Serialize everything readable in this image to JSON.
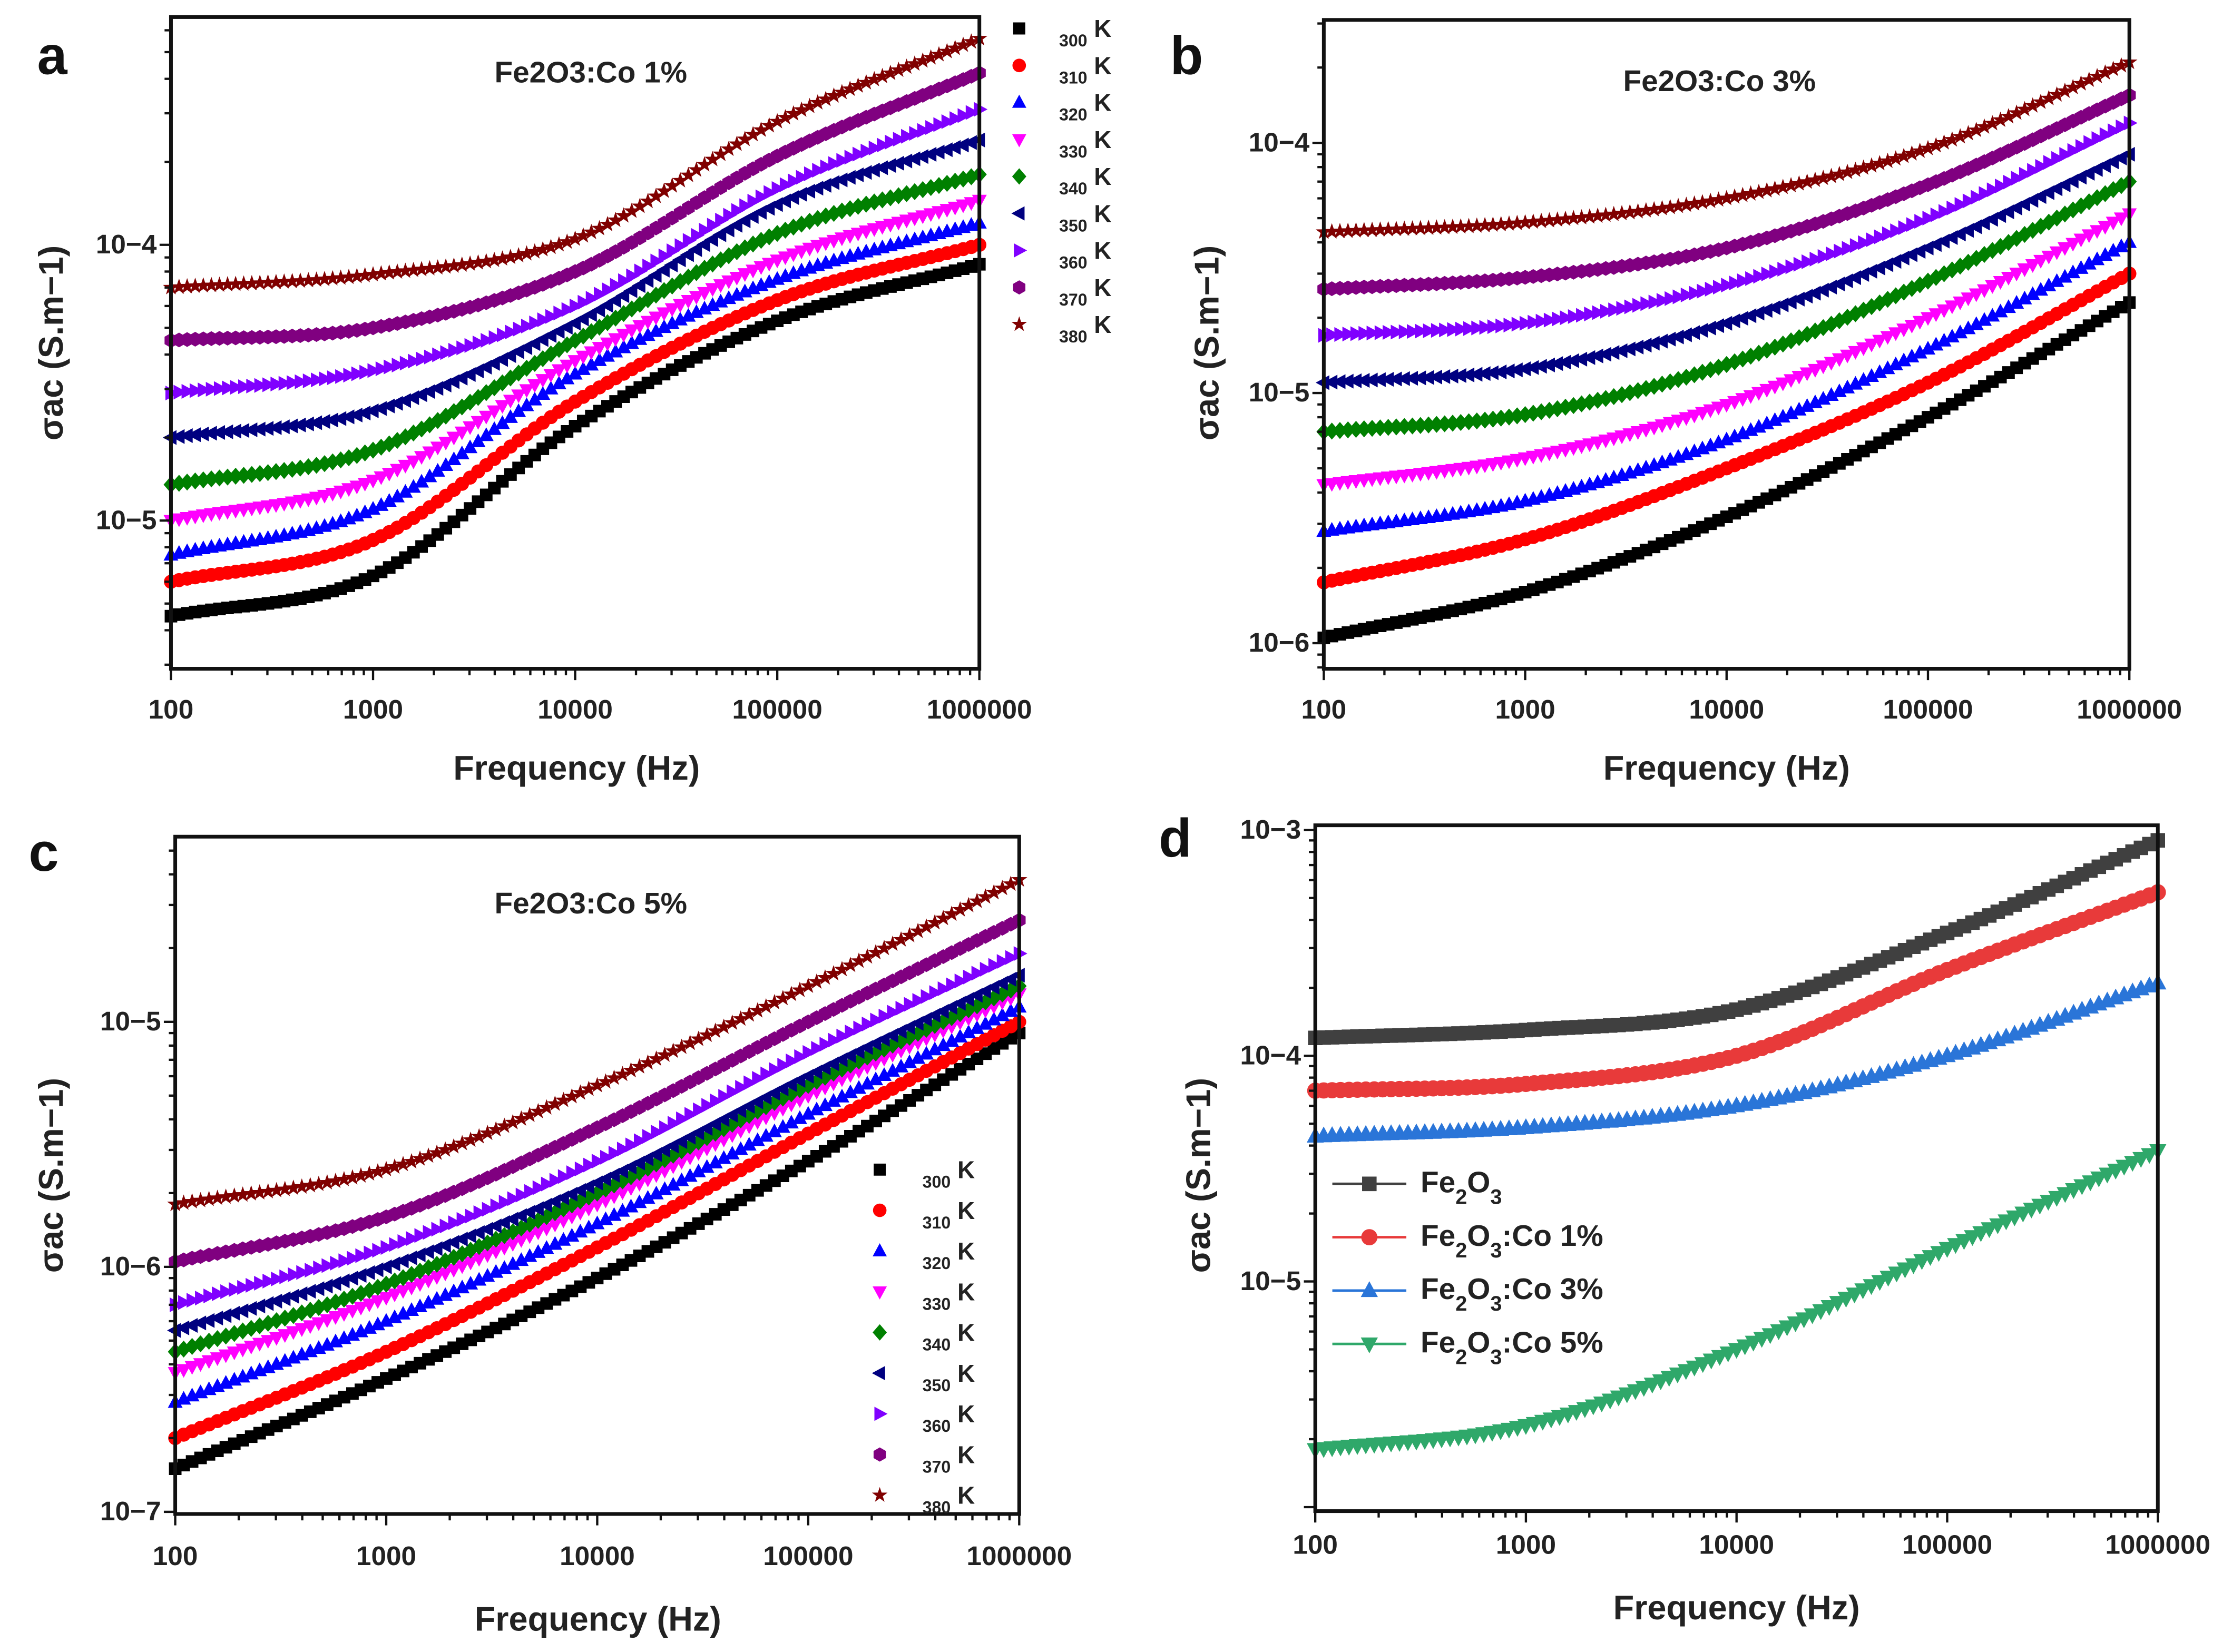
{
  "chart_data": [
    {
      "panel": "a",
      "type": "scatter",
      "title": "Fe2O3:Co 1%",
      "xlabel": "Frequency (Hz)",
      "ylabel": "σac (S.m−1)",
      "xscale": "log",
      "yscale": "log",
      "xlim": [
        100,
        1000000
      ],
      "ylim": [
        2.9e-06,
        0.00067
      ],
      "xticks": [
        100,
        1000,
        10000,
        100000,
        1000000
      ],
      "xtick_labels": [
        "100",
        "1000",
        "10000",
        "100000",
        "1000000"
      ],
      "yticks": [
        1e-05,
        0.0001
      ],
      "ytick_labels": [
        "10−5",
        "10−4"
      ],
      "legend_position": "outside-right",
      "x": [
        100,
        1000,
        10000,
        100000,
        1000000
      ],
      "series": [
        {
          "name": "300 K",
          "marker": "square",
          "color": "#000000",
          "values": [
            4.5e-06,
            6.3e-06,
            2.2e-05,
            5.3e-05,
            8.5e-05
          ]
        },
        {
          "name": "310 K",
          "marker": "circle",
          "color": "#ff0000",
          "values": [
            6e-06,
            8.5e-06,
            2.7e-05,
            6.3e-05,
            0.0001
          ]
        },
        {
          "name": "320 K",
          "marker": "triangle-up",
          "color": "#0000ff",
          "values": [
            7.5e-06,
            1.1e-05,
            3.4e-05,
            7.5e-05,
            0.00012
          ]
        },
        {
          "name": "330 K",
          "marker": "triangle-down",
          "color": "#ff00ff",
          "values": [
            1e-05,
            1.4e-05,
            3.8e-05,
            8.8e-05,
            0.000145
          ]
        },
        {
          "name": "340 K",
          "marker": "diamond",
          "color": "#008000",
          "values": [
            1.35e-05,
            1.8e-05,
            4.5e-05,
            0.00011,
            0.00018
          ]
        },
        {
          "name": "350 K",
          "marker": "triangle-left",
          "color": "#000080",
          "values": [
            2e-05,
            2.5e-05,
            5.2e-05,
            0.00014,
            0.00024
          ]
        },
        {
          "name": "360 K",
          "marker": "triangle-right",
          "color": "#8000ff",
          "values": [
            2.9e-05,
            3.5e-05,
            6e-05,
            0.00016,
            0.00031
          ]
        },
        {
          "name": "370 K",
          "marker": "hexagon",
          "color": "#800080",
          "values": [
            4.5e-05,
            5e-05,
            8e-05,
            0.00021,
            0.00042
          ]
        },
        {
          "name": "380 K",
          "marker": "star",
          "color": "#800000",
          "values": [
            7e-05,
            7.8e-05,
            0.000105,
            0.00028,
            0.00056
          ]
        }
      ]
    },
    {
      "panel": "b",
      "type": "scatter",
      "title": "Fe2O3:Co 3%",
      "xlabel": "Frequency (Hz)",
      "ylabel": "σac (S.m−1)",
      "xscale": "log",
      "yscale": "log",
      "xlim": [
        100,
        1000000
      ],
      "ylim": [
        7.9e-07,
        0.00031
      ],
      "xticks": [
        100,
        1000,
        10000,
        100000,
        1000000
      ],
      "xtick_labels": [
        "100",
        "1000",
        "10000",
        "100000",
        "1000000"
      ],
      "yticks": [
        1e-06,
        1e-05,
        0.0001
      ],
      "ytick_labels": [
        "10−6",
        "10−5",
        "10−4"
      ],
      "legend_position": "none",
      "x": [
        100,
        1000,
        10000,
        100000,
        1000000
      ],
      "series": [
        {
          "name": "300 K",
          "marker": "square",
          "color": "#000000",
          "values": [
            1.05e-06,
            1.6e-06,
            3.2e-06,
            8e-06,
            2.3e-05
          ]
        },
        {
          "name": "310 K",
          "marker": "circle",
          "color": "#ff0000",
          "values": [
            1.75e-06,
            2.6e-06,
            5e-06,
            1.1e-05,
            3e-05
          ]
        },
        {
          "name": "320 K",
          "marker": "triangle-up",
          "color": "#0000ff",
          "values": [
            2.8e-06,
            3.7e-06,
            6.5e-06,
            1.5e-05,
            4e-05
          ]
        },
        {
          "name": "330 K",
          "marker": "triangle-down",
          "color": "#ff00ff",
          "values": [
            4.3e-06,
            5.5e-06,
            9e-06,
            2e-05,
            5.2e-05
          ]
        },
        {
          "name": "340 K",
          "marker": "diamond",
          "color": "#008000",
          "values": [
            7e-06,
            8.2e-06,
            1.3e-05,
            2.8e-05,
            7e-05
          ]
        },
        {
          "name": "350 K",
          "marker": "triangle-left",
          "color": "#000080",
          "values": [
            1.1e-05,
            1.25e-05,
            1.9e-05,
            3.8e-05,
            9e-05
          ]
        },
        {
          "name": "360 K",
          "marker": "triangle-right",
          "color": "#8000ff",
          "values": [
            1.7e-05,
            1.9e-05,
            2.7e-05,
            5e-05,
            0.00012
          ]
        },
        {
          "name": "370 K",
          "marker": "hexagon",
          "color": "#800080",
          "values": [
            2.6e-05,
            2.9e-05,
            3.8e-05,
            6.8e-05,
            0.000155
          ]
        },
        {
          "name": "380 K",
          "marker": "star",
          "color": "#800000",
          "values": [
            4.4e-05,
            4.8e-05,
            6e-05,
            9.5e-05,
            0.00021
          ]
        }
      ]
    },
    {
      "panel": "c",
      "type": "scatter",
      "title": "Fe2O3:Co 5%",
      "xlabel": "Frequency (Hz)",
      "ylabel": "σac (S.m−1)",
      "xscale": "log",
      "yscale": "log",
      "xlim": [
        100,
        1000000
      ],
      "ylim": [
        9.8e-08,
        5.7e-05
      ],
      "xticks": [
        100,
        1000,
        10000,
        100000,
        1000000
      ],
      "xtick_labels": [
        "100",
        "1000",
        "10000",
        "100000",
        "1000000"
      ],
      "yticks": [
        1e-07,
        1e-06,
        1e-05
      ],
      "ytick_labels": [
        "10−7",
        "10−6",
        "10−5"
      ],
      "legend_position": "bottom-right",
      "x": [
        100,
        1000,
        10000,
        100000,
        1000000
      ],
      "series": [
        {
          "name": "300 K",
          "marker": "square",
          "color": "#000000",
          "values": [
            1.5e-07,
            3.5e-07,
            9e-07,
            2.7e-06,
            9e-06
          ]
        },
        {
          "name": "310 K",
          "marker": "circle",
          "color": "#ff0000",
          "values": [
            2e-07,
            4.5e-07,
            1.2e-06,
            3.5e-06,
            1e-05
          ]
        },
        {
          "name": "320 K",
          "marker": "triangle-up",
          "color": "#0000ff",
          "values": [
            2.8e-07,
            6e-07,
            1.5e-06,
            4.2e-06,
            1.15e-05
          ]
        },
        {
          "name": "330 K",
          "marker": "triangle-down",
          "color": "#ff00ff",
          "values": [
            3.7e-07,
            7.5e-07,
            1.8e-06,
            5e-06,
            1.3e-05
          ]
        },
        {
          "name": "340 K",
          "marker": "diamond",
          "color": "#008000",
          "values": [
            4.5e-07,
            8.5e-07,
            2e-06,
            5.5e-06,
            1.4e-05
          ]
        },
        {
          "name": "350 K",
          "marker": "triangle-left",
          "color": "#000080",
          "values": [
            5.5e-07,
            1e-06,
            2.2e-06,
            6e-06,
            1.55e-05
          ]
        },
        {
          "name": "360 K",
          "marker": "triangle-right",
          "color": "#8000ff",
          "values": [
            7e-07,
            1.2e-06,
            2.7e-06,
            7.5e-06,
            1.9e-05
          ]
        },
        {
          "name": "370 K",
          "marker": "hexagon",
          "color": "#800080",
          "values": [
            1.05e-06,
            1.6e-06,
            3.7e-06,
            1e-05,
            2.6e-05
          ]
        },
        {
          "name": "380 K",
          "marker": "star",
          "color": "#800000",
          "values": [
            1.8e-06,
            2.5e-06,
            5.5e-06,
            1.4e-05,
            3.8e-05
          ]
        }
      ]
    },
    {
      "panel": "d",
      "type": "line",
      "title": "",
      "xlabel": "Frequency (Hz)",
      "ylabel": "σac (S.m−1)",
      "xscale": "log",
      "yscale": "log",
      "xlim": [
        100,
        1000000
      ],
      "ylim": [
        9.6e-07,
        0.00105
      ],
      "xticks": [
        100,
        1000,
        10000,
        100000,
        1000000
      ],
      "xtick_labels": [
        "100",
        "1000",
        "10000",
        "100000",
        "1000000"
      ],
      "yticks": [
        1e-05,
        0.0001,
        0.001
      ],
      "ytick_labels": [
        "10−5",
        "10−4",
        "10−3"
      ],
      "legend_position": "center-left",
      "x": [
        100,
        1000,
        10000,
        100000,
        1000000
      ],
      "series": [
        {
          "name": "Fe2O3",
          "marker": "square",
          "color": "#404040",
          "values": [
            0.00012,
            0.00013,
            0.00016,
            0.00035,
            0.0009
          ]
        },
        {
          "name": "Fe2O3:Co 1%",
          "marker": "circle",
          "color": "#e83a3a",
          "values": [
            7e-05,
            7.5e-05,
            0.0001,
            0.00024,
            0.00053
          ]
        },
        {
          "name": "Fe2O3:Co 3%",
          "marker": "triangle-up",
          "color": "#2a75d8",
          "values": [
            4.4e-05,
            4.8e-05,
            6e-05,
            0.0001,
            0.00021
          ]
        },
        {
          "name": "Fe2O3:Co 5%",
          "marker": "triangle-down",
          "color": "#2fa86a",
          "values": [
            1.8e-06,
            2.3e-06,
            5e-06,
            1.4e-05,
            3.8e-05
          ]
        }
      ]
    }
  ],
  "panel_letters": [
    "a",
    "b",
    "c",
    "d"
  ]
}
